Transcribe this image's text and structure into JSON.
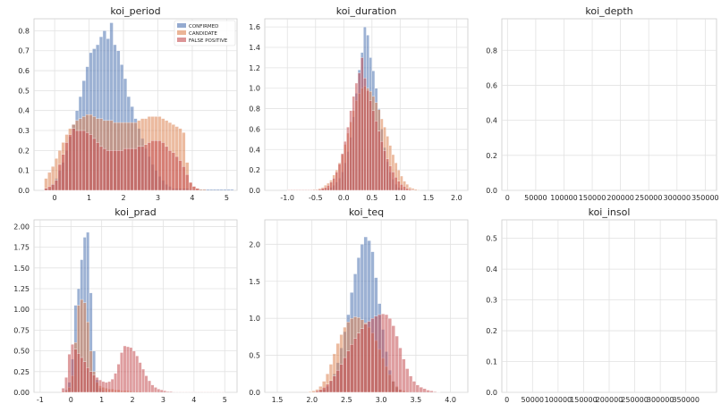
{
  "chart_data": [
    {
      "type": "histogram",
      "title": "koi_period",
      "xlim": [
        -0.6,
        5.3
      ],
      "ylim": [
        0,
        0.86
      ],
      "xticks": [
        0,
        1,
        2,
        3,
        4,
        5
      ],
      "yticks": [
        0.0,
        0.1,
        0.2,
        0.3,
        0.4,
        0.5,
        0.6,
        0.7,
        0.8
      ],
      "bin_width": 0.1,
      "legend": {
        "placement": "top-right",
        "entries": [
          "CONFIRMED",
          "CANDIDATE",
          "FALSE POSITIVE"
        ]
      },
      "series": [
        {
          "color": "#4c72b0",
          "x0": -0.3,
          "values": [
            0.01,
            0.01,
            0.03,
            0.06,
            0.1,
            0.14,
            0.2,
            0.27,
            0.33,
            0.4,
            0.47,
            0.55,
            0.62,
            0.69,
            0.71,
            0.73,
            0.77,
            0.8,
            0.76,
            0.84,
            0.73,
            0.7,
            0.63,
            0.56,
            0.47,
            0.42,
            0.36,
            0.31,
            0.26,
            0.21,
            0.17,
            0.13,
            0.1,
            0.07,
            0.05,
            0.03,
            0.02,
            0.01,
            0.01,
            0.01,
            0.01,
            0.01,
            0.005,
            0.005,
            0.005,
            0.005,
            0.005,
            0.005,
            0.005,
            0.005,
            0.005,
            0.005,
            0.005,
            0.005,
            0.005
          ]
        },
        {
          "color": "#dd8452",
          "x0": -0.3,
          "values": [
            0.06,
            0.09,
            0.12,
            0.16,
            0.2,
            0.24,
            0.28,
            0.31,
            0.33,
            0.35,
            0.36,
            0.37,
            0.38,
            0.38,
            0.37,
            0.36,
            0.36,
            0.35,
            0.35,
            0.35,
            0.34,
            0.34,
            0.34,
            0.34,
            0.34,
            0.34,
            0.34,
            0.35,
            0.36,
            0.36,
            0.37,
            0.37,
            0.37,
            0.37,
            0.36,
            0.35,
            0.34,
            0.33,
            0.32,
            0.31,
            0.29,
            0.14,
            0.04,
            0.02,
            0.01,
            0.005,
            0.005
          ]
        },
        {
          "color": "#c44e52",
          "x0": -0.3,
          "values": [
            0.01,
            0.02,
            0.03,
            0.05,
            0.13,
            0.18,
            0.24,
            0.28,
            0.31,
            0.3,
            0.3,
            0.3,
            0.29,
            0.28,
            0.26,
            0.24,
            0.22,
            0.21,
            0.2,
            0.2,
            0.2,
            0.2,
            0.2,
            0.21,
            0.21,
            0.21,
            0.21,
            0.22,
            0.22,
            0.23,
            0.24,
            0.25,
            0.25,
            0.25,
            0.24,
            0.22,
            0.2,
            0.19,
            0.17,
            0.15,
            0.12,
            0.08,
            0.04,
            0.02,
            0.01
          ]
        }
      ]
    },
    {
      "type": "histogram",
      "title": "koi_duration",
      "xlim": [
        -1.4,
        2.2
      ],
      "ylim": [
        0,
        1.68
      ],
      "xticks": [
        -1.0,
        -0.5,
        0.0,
        0.5,
        1.0,
        1.5,
        2.0
      ],
      "yticks": [
        0.0,
        0.2,
        0.4,
        0.6,
        0.8,
        1.0,
        1.2,
        1.4,
        1.6
      ],
      "bin_width": 0.05,
      "series": [
        {
          "color": "#4c72b0",
          "x0": -1.0,
          "values": [
            0.005,
            0.005,
            0.005,
            0.005,
            0.005,
            0.005,
            0.005,
            0.005,
            0.005,
            0.005,
            0.005,
            0.005,
            0.01,
            0.01,
            0.02,
            0.03,
            0.05,
            0.08,
            0.12,
            0.18,
            0.27,
            0.38,
            0.52,
            0.72,
            0.95,
            1.18,
            1.35,
            1.6,
            1.52,
            1.3,
            1.17,
            1.0,
            0.8,
            0.6,
            0.42,
            0.28,
            0.18,
            0.11,
            0.06,
            0.03,
            0.02,
            0.01,
            0.005,
            0.005
          ]
        },
        {
          "color": "#dd8452",
          "x0": -1.0,
          "values": [
            0.005,
            0.005,
            0.005,
            0.005,
            0.005,
            0.005,
            0.005,
            0.005,
            0.005,
            0.01,
            0.01,
            0.02,
            0.03,
            0.05,
            0.07,
            0.1,
            0.15,
            0.2,
            0.27,
            0.35,
            0.45,
            0.56,
            0.67,
            0.78,
            0.88,
            0.95,
            1.0,
            1.02,
            1.0,
            0.97,
            0.92,
            0.86,
            0.79,
            0.7,
            0.62,
            0.53,
            0.44,
            0.35,
            0.27,
            0.2,
            0.14,
            0.09,
            0.06,
            0.03,
            0.02,
            0.01,
            0.005
          ]
        },
        {
          "color": "#c44e52",
          "x0": -1.0,
          "values": [
            0.005,
            0.005,
            0.005,
            0.005,
            0.005,
            0.005,
            0.005,
            0.005,
            0.005,
            0.005,
            0.005,
            0.01,
            0.02,
            0.03,
            0.05,
            0.08,
            0.12,
            0.18,
            0.26,
            0.36,
            0.48,
            0.62,
            0.78,
            0.92,
            1.05,
            1.15,
            1.3,
            1.1,
            0.98,
            0.88,
            0.78,
            0.68,
            0.58,
            0.48,
            0.39,
            0.31,
            0.24,
            0.18,
            0.13,
            0.09,
            0.06,
            0.04,
            0.02,
            0.01,
            0.005
          ]
        }
      ]
    },
    {
      "type": "histogram",
      "title": "koi_depth",
      "xlim": [
        -10000,
        370000
      ],
      "ylim": [
        0,
        0.98
      ],
      "xticks": [
        0,
        50000,
        100000,
        150000,
        200000,
        250000,
        300000,
        350000
      ],
      "yticks": [
        0.0,
        0.2,
        0.4,
        0.6,
        0.8
      ],
      "series": []
    },
    {
      "type": "histogram",
      "title": "koi_prad",
      "xlim": [
        -1.2,
        5.4
      ],
      "ylim": [
        0,
        2.08
      ],
      "xticks": [
        -1,
        0,
        1,
        2,
        3,
        4,
        5
      ],
      "yticks": [
        0.0,
        0.25,
        0.5,
        0.75,
        1.0,
        1.25,
        1.5,
        1.75,
        2.0
      ],
      "bin_width": 0.1,
      "series": [
        {
          "color": "#4c72b0",
          "x0": -0.3,
          "values": [
            0.01,
            0.03,
            0.12,
            0.4,
            1.05,
            1.25,
            1.6,
            1.87,
            1.93,
            1.2,
            0.5,
            0.15,
            0.05,
            0.02,
            0.01,
            0.005,
            0.005
          ]
        },
        {
          "color": "#dd8452",
          "x0": -0.3,
          "values": [
            0.01,
            0.02,
            0.06,
            0.2,
            0.6,
            1.05,
            1.12,
            1.08,
            0.85,
            0.5,
            0.25,
            0.12,
            0.08,
            0.06,
            0.05,
            0.04,
            0.04,
            0.03,
            0.03,
            0.02,
            0.02,
            0.02,
            0.015,
            0.01,
            0.01,
            0.01,
            0.005,
            0.005,
            0.005,
            0.005,
            0.005
          ]
        },
        {
          "color": "#c44e52",
          "x0": -0.3,
          "values": [
            0.05,
            0.18,
            0.46,
            0.58,
            0.52,
            0.47,
            0.42,
            0.37,
            0.3,
            0.25,
            0.21,
            0.18,
            0.15,
            0.13,
            0.12,
            0.13,
            0.16,
            0.23,
            0.34,
            0.48,
            0.56,
            0.55,
            0.54,
            0.5,
            0.44,
            0.36,
            0.28,
            0.2,
            0.14,
            0.09,
            0.06,
            0.04,
            0.03,
            0.02,
            0.01,
            0.01,
            0.005,
            0.005,
            0.005,
            0.005,
            0.005,
            0.005,
            0.005,
            0.005,
            0.005,
            0.005,
            0.005,
            0.005,
            0.005,
            0.005,
            0.005,
            0.005,
            0.005
          ]
        }
      ]
    },
    {
      "type": "histogram",
      "title": "koi_teq",
      "xlim": [
        1.32,
        4.25
      ],
      "ylim": [
        0,
        2.33
      ],
      "xticks": [
        1.5,
        2.0,
        2.5,
        3.0,
        3.5,
        4.0
      ],
      "yticks": [
        0.0,
        0.5,
        1.0,
        1.5,
        2.0
      ],
      "bin_width": 0.05,
      "series": [
        {
          "color": "#4c72b0",
          "x0": 2.05,
          "values": [
            0.01,
            0.02,
            0.04,
            0.08,
            0.15,
            0.25,
            0.4,
            0.6,
            0.82,
            1.05,
            1.35,
            1.6,
            1.82,
            2.0,
            2.1,
            2.05,
            1.9,
            1.55,
            1.2,
            0.85,
            0.55,
            0.3,
            0.15,
            0.07,
            0.03,
            0.01
          ]
        },
        {
          "color": "#dd8452",
          "x0": 1.95,
          "values": [
            0.01,
            0.02,
            0.04,
            0.08,
            0.15,
            0.25,
            0.38,
            0.52,
            0.66,
            0.78,
            0.88,
            0.95,
            1.0,
            1.02,
            1.01,
            0.98,
            0.94,
            0.88,
            0.8,
            0.7,
            0.58,
            0.46,
            0.35,
            0.24,
            0.15,
            0.08,
            0.04,
            0.02,
            0.01
          ]
        },
        {
          "color": "#c44e52",
          "x0": 2.05,
          "values": [
            0.02,
            0.04,
            0.07,
            0.11,
            0.16,
            0.22,
            0.3,
            0.38,
            0.47,
            0.56,
            0.65,
            0.73,
            0.8,
            0.86,
            0.92,
            0.96,
            1.0,
            1.03,
            1.05,
            1.06,
            1.05,
            1.0,
            0.9,
            0.76,
            0.6,
            0.45,
            0.32,
            0.22,
            0.15,
            0.1,
            0.07,
            0.05,
            0.03,
            0.02,
            0.01,
            0.005
          ]
        }
      ]
    },
    {
      "type": "histogram",
      "title": "koi_insol",
      "xlim": [
        -10000,
        410000
      ],
      "ylim": [
        0,
        0.56
      ],
      "xticks": [
        0,
        50000,
        100000,
        150000,
        200000,
        250000,
        300000,
        350000
      ],
      "yticks": [
        0.0,
        0.1,
        0.2,
        0.3,
        0.4,
        0.5
      ],
      "series": []
    }
  ]
}
